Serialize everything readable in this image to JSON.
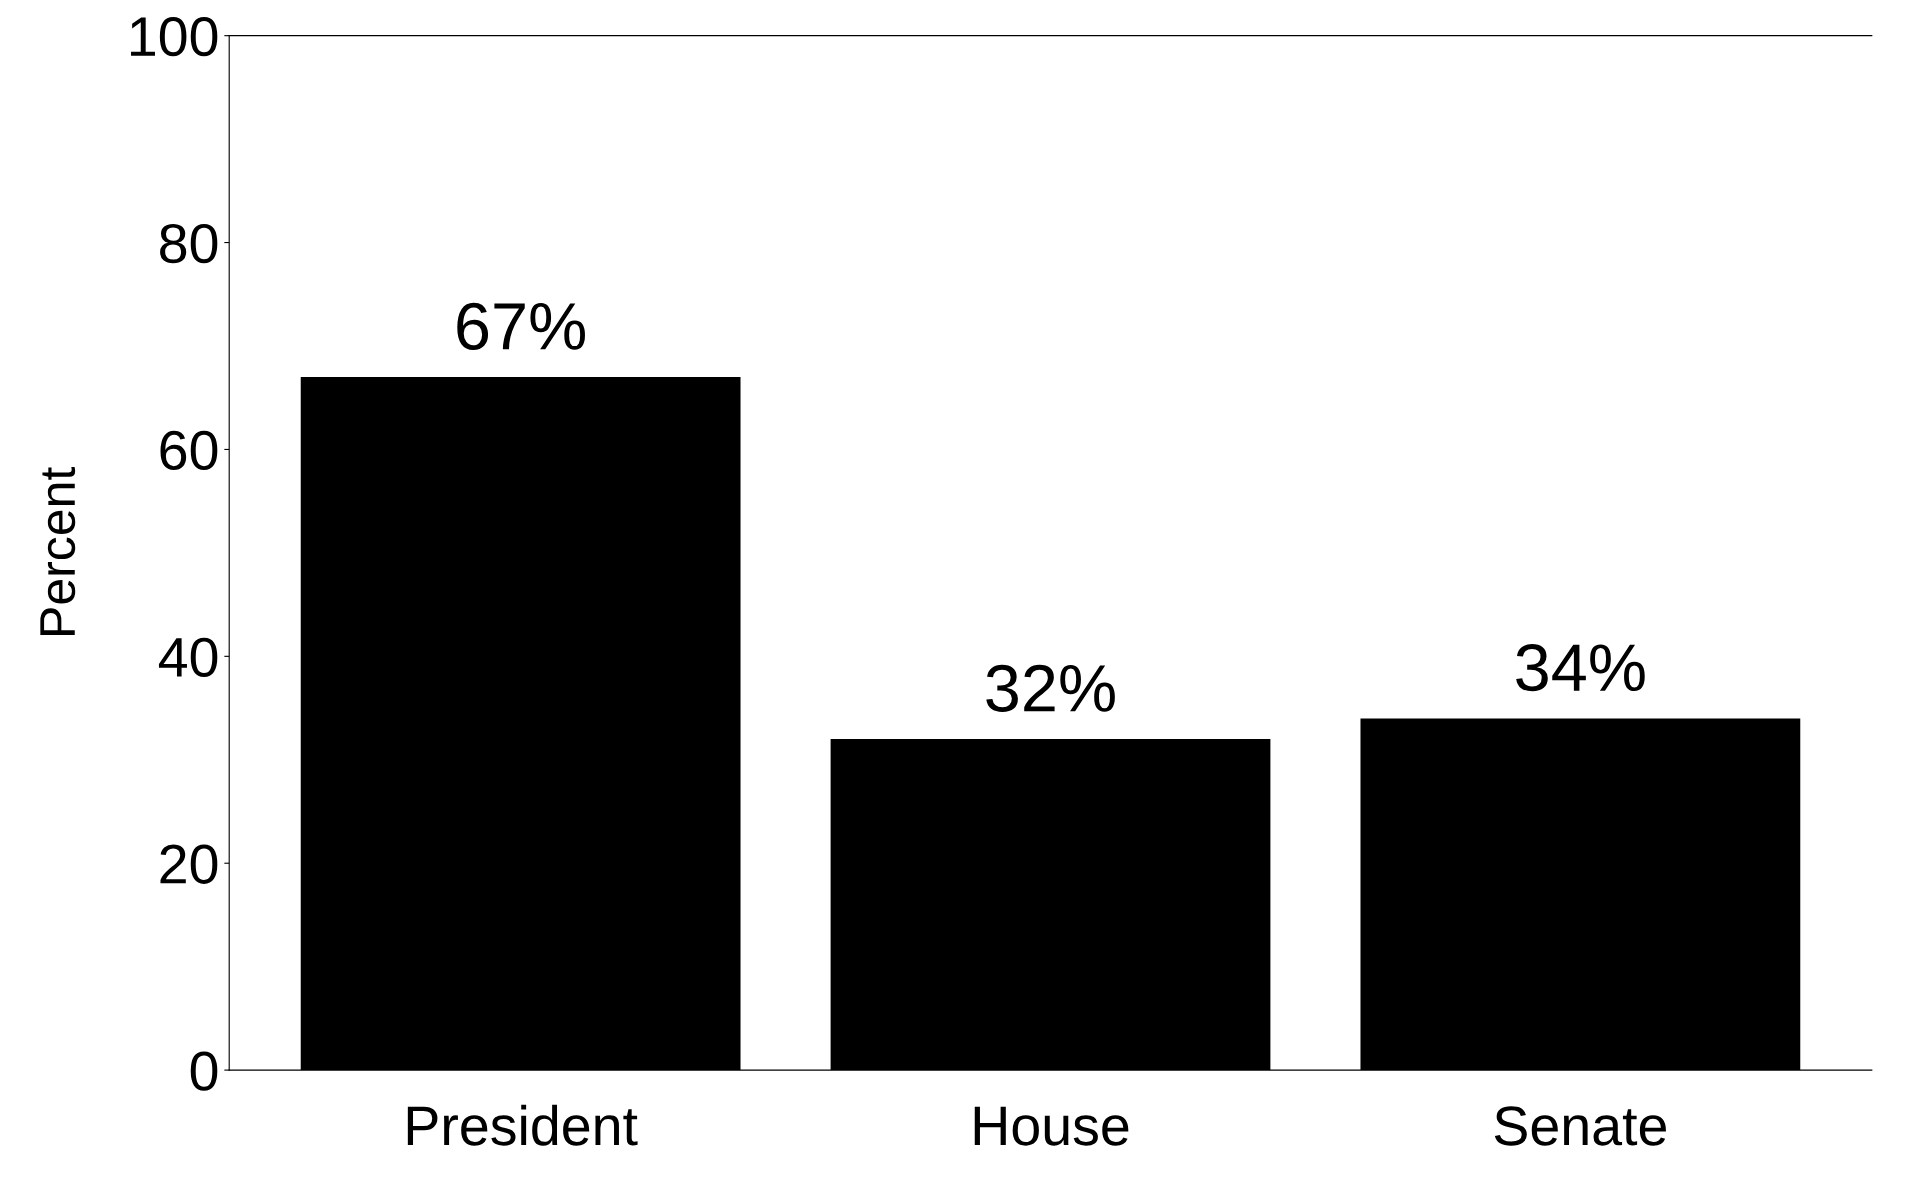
{
  "chart_data": {
    "type": "bar",
    "ylabel": "Percent",
    "categories": [
      "President",
      "House",
      "Senate"
    ],
    "values": [
      67,
      32,
      34
    ],
    "value_labels": [
      "67%",
      "32%",
      "34%"
    ],
    "color": "#000000",
    "ylim": [
      0,
      100
    ],
    "yticks": [
      0,
      20,
      40,
      60,
      80,
      100
    ],
    "grid": false
  }
}
